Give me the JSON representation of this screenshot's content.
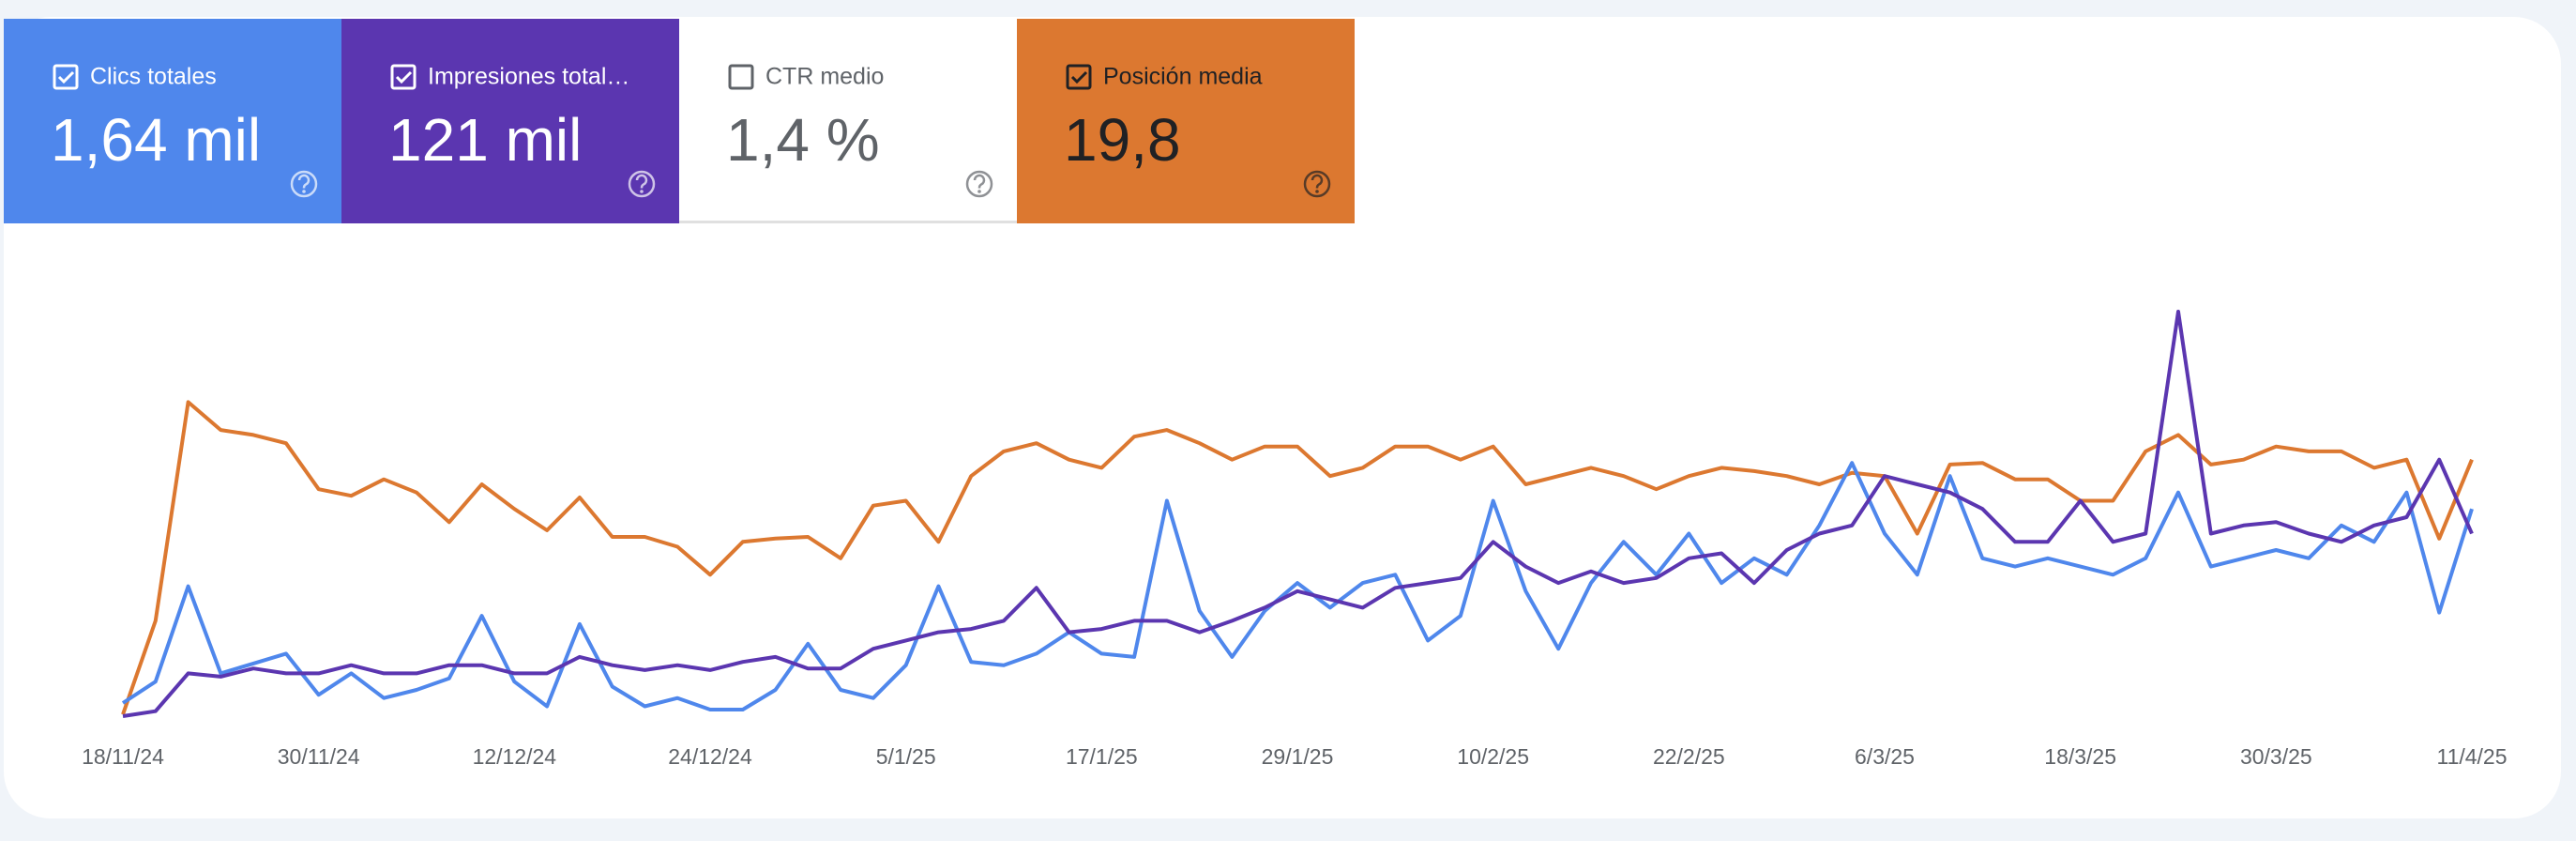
{
  "chart_data": {
    "type": "line",
    "categories": [
      "18/11/24",
      null,
      null,
      null,
      null,
      null,
      "30/11/24",
      null,
      null,
      null,
      null,
      null,
      "12/12/24",
      null,
      null,
      null,
      null,
      null,
      "24/12/24",
      null,
      null,
      null,
      null,
      null,
      "5/1/25",
      null,
      null,
      null,
      null,
      null,
      "17/1/25",
      null,
      null,
      null,
      null,
      null,
      "29/1/25",
      null,
      null,
      null,
      null,
      null,
      "10/2/25",
      null,
      null,
      null,
      null,
      null,
      "22/2/25",
      null,
      null,
      null,
      null,
      null,
      "6/3/25",
      null,
      null,
      null,
      null,
      null,
      "18/3/25",
      null,
      null,
      null,
      null,
      null,
      "30/3/25",
      null,
      null,
      null,
      null,
      null,
      "11/4/25"
    ],
    "series": [
      {
        "name": "Clics totales",
        "total": "1,64 mil",
        "checked": true,
        "color": "#4f87ec",
        "text_color": "#ffffff",
        "values": [
          12,
          25,
          83,
          30,
          36,
          42,
          17,
          30,
          15,
          20,
          27,
          65,
          25,
          10,
          60,
          22,
          10,
          15,
          8,
          8,
          20,
          48,
          20,
          15,
          35,
          83,
          37,
          35,
          42,
          55,
          42,
          40,
          135,
          68,
          40,
          68,
          85,
          70,
          85,
          90,
          50,
          65,
          135,
          80,
          45,
          85,
          110,
          90,
          115,
          85,
          100,
          90,
          120,
          158,
          115,
          90,
          150,
          100,
          95,
          100,
          95,
          90,
          100,
          140,
          95,
          100,
          105,
          100,
          120,
          110,
          140,
          67,
          130
        ]
      },
      {
        "name": "Impresiones total…",
        "total": "121 mil",
        "checked": true,
        "color": "#5b36b0",
        "text_color": "#ffffff",
        "values": [
          4,
          7,
          30,
          28,
          33,
          30,
          30,
          35,
          30,
          30,
          35,
          35,
          30,
          30,
          40,
          35,
          32,
          35,
          32,
          37,
          40,
          33,
          33,
          45,
          50,
          55,
          57,
          62,
          82,
          55,
          57,
          62,
          62,
          55,
          62,
          70,
          80,
          75,
          70,
          82,
          85,
          88,
          110,
          95,
          85,
          92,
          85,
          88,
          100,
          103,
          85,
          105,
          115,
          120,
          150,
          145,
          140,
          130,
          110,
          110,
          135,
          110,
          115,
          250,
          115,
          120,
          122,
          115,
          110,
          120,
          125,
          160,
          115
        ]
      },
      {
        "name": "CTR medio",
        "total": "1,4 %",
        "checked": false,
        "color": "#ffffff",
        "text_color": "#5f6368"
      },
      {
        "name": "Posición media",
        "total": "19,8",
        "checked": true,
        "color": "#dc7830",
        "text_color": "#202124",
        "values": [
          5,
          62,
          195,
          178,
          175,
          170,
          142,
          138,
          148,
          140,
          122,
          145,
          130,
          117,
          137,
          113,
          113,
          107,
          90,
          110,
          112,
          113,
          100,
          132,
          135,
          110,
          150,
          165,
          170,
          160,
          155,
          174,
          178,
          170,
          160,
          168,
          168,
          150,
          155,
          168,
          168,
          160,
          168,
          145,
          150,
          155,
          150,
          142,
          150,
          155,
          153,
          150,
          145,
          152,
          150,
          115,
          157,
          158,
          148,
          148,
          135,
          135,
          165,
          175,
          157,
          160,
          168,
          165,
          165,
          155,
          160,
          112,
          160
        ]
      }
    ]
  }
}
